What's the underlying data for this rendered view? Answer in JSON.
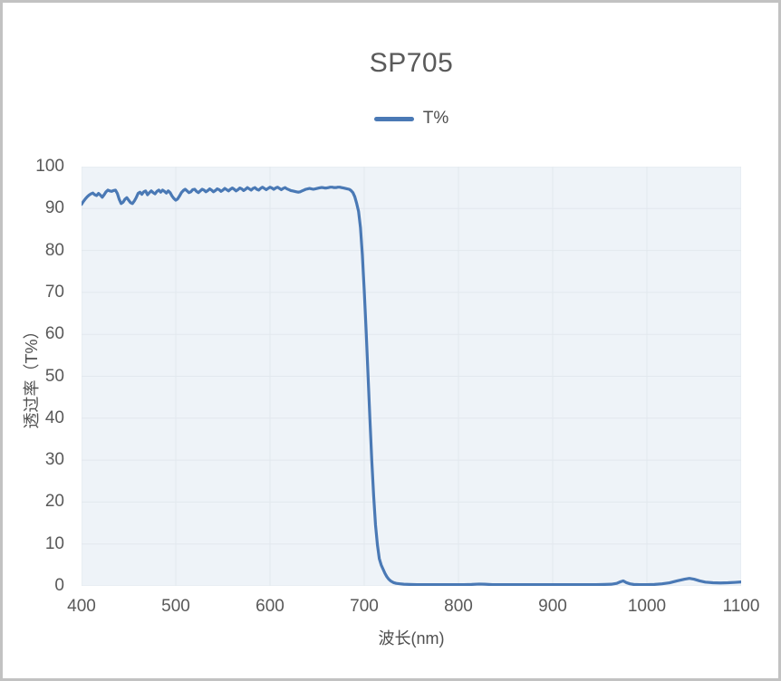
{
  "page": {
    "background": "#ffffff",
    "frame_border_color": "#c2c2c2"
  },
  "chart_data": {
    "type": "line",
    "title": "SP705",
    "xlabel": "波长(nm)",
    "ylabel": "透过率（T%）",
    "xlim": [
      400,
      1100
    ],
    "ylim": [
      0,
      100
    ],
    "x_ticks": [
      400,
      500,
      600,
      700,
      800,
      900,
      1000,
      1100
    ],
    "y_ticks": [
      0,
      10,
      20,
      30,
      40,
      50,
      60,
      70,
      80,
      90,
      100
    ],
    "grid": true,
    "legend_position": "top-center",
    "plot_bg_color": "#eef3f8",
    "grid_color": "#e2e8ee",
    "legend": [
      {
        "label": "T%",
        "color": "#4a79b5"
      }
    ],
    "series": [
      {
        "name": "T%",
        "color": "#4a79b5",
        "points": [
          [
            400,
            91.0
          ],
          [
            402,
            91.7
          ],
          [
            404,
            92.3
          ],
          [
            406,
            92.8
          ],
          [
            408,
            93.2
          ],
          [
            410,
            93.5
          ],
          [
            412,
            93.7
          ],
          [
            414,
            93.3
          ],
          [
            416,
            93.1
          ],
          [
            418,
            93.6
          ],
          [
            420,
            93.2
          ],
          [
            422,
            92.7
          ],
          [
            424,
            93.3
          ],
          [
            426,
            94.0
          ],
          [
            428,
            94.4
          ],
          [
            430,
            94.2
          ],
          [
            432,
            94.1
          ],
          [
            434,
            94.3
          ],
          [
            436,
            94.4
          ],
          [
            438,
            93.6
          ],
          [
            440,
            92.2
          ],
          [
            442,
            91.2
          ],
          [
            444,
            91.5
          ],
          [
            446,
            92.2
          ],
          [
            448,
            92.6
          ],
          [
            450,
            92.0
          ],
          [
            452,
            91.4
          ],
          [
            454,
            91.2
          ],
          [
            456,
            91.8
          ],
          [
            458,
            92.6
          ],
          [
            460,
            93.6
          ],
          [
            462,
            93.9
          ],
          [
            464,
            93.4
          ],
          [
            466,
            94.0
          ],
          [
            468,
            94.2
          ],
          [
            470,
            93.3
          ],
          [
            472,
            93.8
          ],
          [
            474,
            94.2
          ],
          [
            476,
            93.8
          ],
          [
            478,
            93.5
          ],
          [
            480,
            94.1
          ],
          [
            482,
            94.4
          ],
          [
            484,
            93.9
          ],
          [
            486,
            94.4
          ],
          [
            488,
            94.1
          ],
          [
            490,
            93.7
          ],
          [
            492,
            94.2
          ],
          [
            494,
            93.8
          ],
          [
            496,
            93.0
          ],
          [
            498,
            92.4
          ],
          [
            500,
            92.0
          ],
          [
            502,
            92.3
          ],
          [
            504,
            93.0
          ],
          [
            506,
            93.8
          ],
          [
            508,
            94.3
          ],
          [
            510,
            94.6
          ],
          [
            512,
            94.2
          ],
          [
            514,
            93.8
          ],
          [
            516,
            94.0
          ],
          [
            518,
            94.5
          ],
          [
            520,
            94.6
          ],
          [
            522,
            94.1
          ],
          [
            524,
            93.8
          ],
          [
            526,
            94.2
          ],
          [
            528,
            94.6
          ],
          [
            530,
            94.4
          ],
          [
            532,
            94.0
          ],
          [
            534,
            94.3
          ],
          [
            536,
            94.7
          ],
          [
            538,
            94.4
          ],
          [
            540,
            94.0
          ],
          [
            542,
            94.3
          ],
          [
            544,
            94.7
          ],
          [
            546,
            94.5
          ],
          [
            548,
            94.1
          ],
          [
            550,
            94.4
          ],
          [
            552,
            94.8
          ],
          [
            554,
            94.5
          ],
          [
            556,
            94.2
          ],
          [
            558,
            94.6
          ],
          [
            560,
            94.9
          ],
          [
            562,
            94.6
          ],
          [
            564,
            94.2
          ],
          [
            566,
            94.5
          ],
          [
            568,
            94.9
          ],
          [
            570,
            94.7
          ],
          [
            572,
            94.3
          ],
          [
            574,
            94.6
          ],
          [
            576,
            95.0
          ],
          [
            578,
            94.7
          ],
          [
            580,
            94.4
          ],
          [
            582,
            94.8
          ],
          [
            584,
            95.0
          ],
          [
            586,
            94.6
          ],
          [
            588,
            94.4
          ],
          [
            590,
            94.8
          ],
          [
            592,
            95.1
          ],
          [
            594,
            94.8
          ],
          [
            596,
            94.5
          ],
          [
            598,
            94.8
          ],
          [
            600,
            95.1
          ],
          [
            602,
            94.9
          ],
          [
            604,
            94.6
          ],
          [
            606,
            94.9
          ],
          [
            608,
            95.1
          ],
          [
            610,
            94.8
          ],
          [
            612,
            94.5
          ],
          [
            614,
            94.8
          ],
          [
            616,
            95.0
          ],
          [
            618,
            94.7
          ],
          [
            620,
            94.5
          ],
          [
            622,
            94.3
          ],
          [
            624,
            94.2
          ],
          [
            626,
            94.1
          ],
          [
            628,
            94.0
          ],
          [
            630,
            93.9
          ],
          [
            632,
            94.0
          ],
          [
            634,
            94.2
          ],
          [
            636,
            94.4
          ],
          [
            638,
            94.6
          ],
          [
            640,
            94.7
          ],
          [
            642,
            94.8
          ],
          [
            644,
            94.7
          ],
          [
            646,
            94.6
          ],
          [
            648,
            94.7
          ],
          [
            650,
            94.8
          ],
          [
            652,
            94.9
          ],
          [
            654,
            95.0
          ],
          [
            656,
            95.0
          ],
          [
            658,
            94.9
          ],
          [
            660,
            94.9
          ],
          [
            662,
            95.0
          ],
          [
            664,
            95.1
          ],
          [
            666,
            95.1
          ],
          [
            668,
            95.0
          ],
          [
            670,
            95.0
          ],
          [
            672,
            95.1
          ],
          [
            674,
            95.1
          ],
          [
            676,
            95.0
          ],
          [
            678,
            94.9
          ],
          [
            680,
            94.8
          ],
          [
            682,
            94.7
          ],
          [
            684,
            94.6
          ],
          [
            686,
            94.3
          ],
          [
            688,
            93.8
          ],
          [
            690,
            92.8
          ],
          [
            692,
            91.2
          ],
          [
            694,
            89.3
          ],
          [
            696,
            85.5
          ],
          [
            698,
            79.0
          ],
          [
            700,
            70.5
          ],
          [
            702,
            61.0
          ],
          [
            704,
            50.5
          ],
          [
            706,
            40.0
          ],
          [
            708,
            30.0
          ],
          [
            710,
            21.5
          ],
          [
            712,
            14.5
          ],
          [
            714,
            9.8
          ],
          [
            716,
            6.5
          ],
          [
            718,
            5.0
          ],
          [
            720,
            4.0
          ],
          [
            722,
            3.0
          ],
          [
            724,
            2.2
          ],
          [
            726,
            1.6
          ],
          [
            728,
            1.2
          ],
          [
            731,
            0.8
          ],
          [
            734,
            0.6
          ],
          [
            738,
            0.5
          ],
          [
            742,
            0.4
          ],
          [
            748,
            0.35
          ],
          [
            756,
            0.3
          ],
          [
            766,
            0.3
          ],
          [
            776,
            0.3
          ],
          [
            786,
            0.3
          ],
          [
            796,
            0.3
          ],
          [
            806,
            0.3
          ],
          [
            814,
            0.35
          ],
          [
            822,
            0.45
          ],
          [
            828,
            0.4
          ],
          [
            836,
            0.3
          ],
          [
            846,
            0.3
          ],
          [
            856,
            0.3
          ],
          [
            866,
            0.3
          ],
          [
            876,
            0.3
          ],
          [
            886,
            0.3
          ],
          [
            896,
            0.3
          ],
          [
            906,
            0.3
          ],
          [
            916,
            0.3
          ],
          [
            926,
            0.3
          ],
          [
            936,
            0.3
          ],
          [
            946,
            0.3
          ],
          [
            955,
            0.35
          ],
          [
            962,
            0.4
          ],
          [
            968,
            0.6
          ],
          [
            972,
            1.0
          ],
          [
            975,
            1.2
          ],
          [
            978,
            0.8
          ],
          [
            982,
            0.5
          ],
          [
            986,
            0.35
          ],
          [
            992,
            0.3
          ],
          [
            1000,
            0.3
          ],
          [
            1008,
            0.35
          ],
          [
            1016,
            0.5
          ],
          [
            1024,
            0.75
          ],
          [
            1032,
            1.2
          ],
          [
            1040,
            1.6
          ],
          [
            1045,
            1.8
          ],
          [
            1050,
            1.6
          ],
          [
            1056,
            1.2
          ],
          [
            1062,
            0.9
          ],
          [
            1070,
            0.75
          ],
          [
            1078,
            0.7
          ],
          [
            1086,
            0.75
          ],
          [
            1094,
            0.85
          ],
          [
            1100,
            0.95
          ]
        ]
      }
    ]
  }
}
